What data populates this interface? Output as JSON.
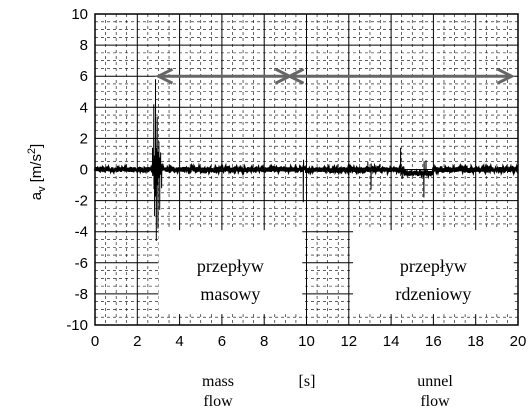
{
  "chart_data": {
    "type": "line",
    "title": "",
    "xlabel": "[s]",
    "ylabel": "a_v [m/s^2]",
    "ylabel_parts": {
      "base": "a",
      "sub": "v",
      "unit": "[m/s",
      "sup": "2",
      "close": "]"
    },
    "xlim": [
      0,
      20
    ],
    "ylim": [
      -10,
      10
    ],
    "xticks": [
      0,
      2,
      4,
      6,
      8,
      10,
      12,
      14,
      16,
      18,
      20
    ],
    "yticks": [
      10,
      8,
      6,
      4,
      2,
      0,
      -2,
      -4,
      -6,
      -8,
      -10
    ],
    "grid": true,
    "series": [
      {
        "noise_amplitude": 0.15,
        "spikes": [
          {
            "x": 2.72,
            "y": 1.4
          },
          {
            "x": 2.78,
            "y": 4.2
          },
          {
            "x": 2.82,
            "y": -3.0
          },
          {
            "x": 2.86,
            "y": 5.8
          },
          {
            "x": 2.9,
            "y": -4.6
          },
          {
            "x": 2.94,
            "y": 3.4
          },
          {
            "x": 2.98,
            "y": -3.8
          },
          {
            "x": 3.02,
            "y": 1.8
          },
          {
            "x": 3.06,
            "y": -2.6
          },
          {
            "x": 3.1,
            "y": 1.1
          },
          {
            "x": 3.15,
            "y": -1.2
          },
          {
            "x": 9.85,
            "y": -2.1
          },
          {
            "x": 12.9,
            "y": 0.5
          },
          {
            "x": 13.05,
            "y": -1.3
          },
          {
            "x": 14.45,
            "y": 1.4
          },
          {
            "x": 14.55,
            "y": -0.6
          },
          {
            "x": 15.55,
            "y": -1.8
          },
          {
            "x": 15.65,
            "y": 0.6
          }
        ]
      }
    ],
    "annotations": [
      {
        "text": "przepływ",
        "line2": "masowy",
        "x_range": [
          3,
          9.2
        ],
        "arrow_y": 6
      },
      {
        "text": "przepływ",
        "line2": "rdzeniowy",
        "x_range": [
          9.2,
          19.7
        ],
        "arrow_y": 6
      }
    ]
  },
  "captions": {
    "mass_line1": "mass",
    "mass_line2": "flow",
    "unnel_line1": "unnel",
    "unnel_line2": "flow"
  }
}
